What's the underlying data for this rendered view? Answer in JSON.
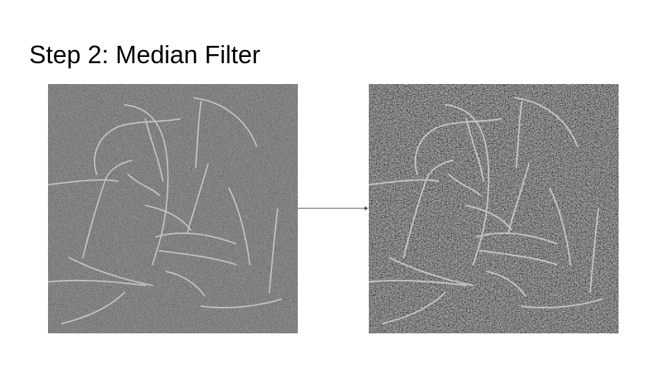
{
  "slide": {
    "title": "Step 2: Median Filter"
  },
  "images": {
    "before": {
      "description_name": "noisy-micrograph"
    },
    "after": {
      "description_name": "median-filtered-micrograph"
    }
  },
  "colors": {
    "background": "#ffffff",
    "text": "#000000",
    "arrow": "#444444"
  }
}
